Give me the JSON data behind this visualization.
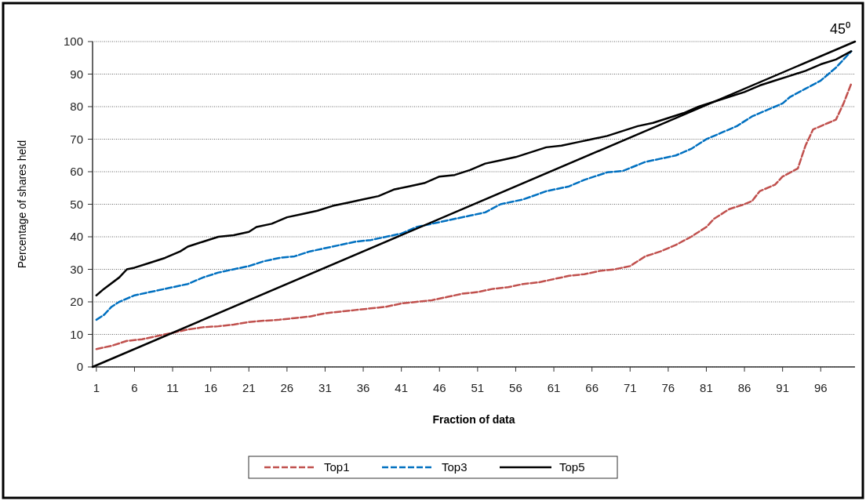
{
  "chart_data": {
    "type": "line",
    "xlabel": "Fraction of data",
    "ylabel": "Percentage of shares held",
    "xlim": [
      0.5,
      100.5
    ],
    "xticks": [
      1,
      6,
      11,
      16,
      21,
      26,
      31,
      36,
      41,
      46,
      51,
      56,
      61,
      66,
      71,
      76,
      81,
      86,
      91,
      96
    ],
    "ylim": [
      0,
      100
    ],
    "yticks": [
      0,
      10,
      20,
      30,
      40,
      50,
      60,
      70,
      80,
      90,
      100
    ],
    "grid": "y",
    "legend": "bottom",
    "annotations": [
      {
        "text": "45⁰",
        "x": 100.5,
        "y": 100
      }
    ],
    "series": [
      {
        "name": "Top1",
        "color": "#c0504d",
        "line_style": "dashed",
        "x": [
          1,
          3,
          5,
          7,
          9,
          11,
          13,
          15,
          17,
          19,
          21,
          23,
          25,
          27,
          29,
          31,
          33,
          35,
          37,
          39,
          41,
          43,
          45,
          47,
          49,
          51,
          53,
          55,
          57,
          59,
          61,
          63,
          65,
          67,
          69,
          71,
          73,
          75,
          77,
          79,
          81,
          82,
          84,
          86,
          87,
          88,
          90,
          91,
          93,
          94,
          95,
          97,
          98,
          99,
          100
        ],
        "values": [
          5.5,
          6.5,
          8,
          8.5,
          9.5,
          10.5,
          11.5,
          12.2,
          12.5,
          13,
          13.8,
          14.2,
          14.5,
          15,
          15.5,
          16.5,
          17,
          17.5,
          18,
          18.5,
          19.5,
          20,
          20.5,
          21.5,
          22.5,
          23,
          24,
          24.5,
          25.5,
          26,
          27,
          28,
          28.5,
          29.5,
          30,
          31,
          34,
          35.5,
          37.5,
          40,
          43,
          45.5,
          48.5,
          50,
          51,
          54,
          56,
          58.5,
          61,
          68,
          73,
          75,
          76,
          81,
          87
        ]
      },
      {
        "name": "Top3",
        "color": "#0070c0",
        "line_style": "dashed",
        "x": [
          1,
          2,
          3,
          4,
          6,
          8,
          10,
          12,
          13,
          15,
          17,
          19,
          21,
          23,
          25,
          27,
          29,
          31,
          33,
          35,
          37,
          39,
          41,
          43,
          45,
          47,
          50,
          52,
          54,
          57,
          60,
          63,
          65,
          68,
          70,
          73,
          75,
          77,
          79,
          81,
          83,
          85,
          87,
          89,
          91,
          92,
          94,
          96,
          98,
          100
        ],
        "values": [
          14.5,
          16,
          18.5,
          20,
          22,
          23,
          24,
          25,
          25.5,
          27.5,
          29,
          30,
          31,
          32.5,
          33.5,
          34,
          35.5,
          36.5,
          37.5,
          38.5,
          39,
          40,
          41,
          43,
          44,
          45,
          46.5,
          47.5,
          50,
          51.5,
          54,
          55.5,
          57.5,
          59.8,
          60.2,
          63,
          64,
          65,
          67,
          70,
          72,
          74,
          77,
          79,
          81,
          83,
          85.5,
          88,
          92,
          97
        ]
      },
      {
        "name": "Top5",
        "color": "#000000",
        "line_style": "solid",
        "x": [
          1,
          2,
          4,
          5,
          6,
          8,
          10,
          12,
          13,
          15,
          17,
          19,
          21,
          22,
          24,
          26,
          28,
          30,
          32,
          34,
          36,
          38,
          40,
          42,
          44,
          46,
          48,
          50,
          52,
          54,
          56,
          58,
          60,
          62,
          64,
          66,
          68,
          70,
          72,
          74,
          76,
          78,
          80,
          82,
          84,
          86,
          88,
          90,
          92,
          94,
          96,
          98,
          100
        ],
        "values": [
          22,
          24,
          27.5,
          30,
          30.5,
          32,
          33.5,
          35.5,
          37,
          38.5,
          40,
          40.5,
          41.5,
          43,
          44,
          46,
          47,
          48,
          49.5,
          50.5,
          51.5,
          52.5,
          54.5,
          55.5,
          56.5,
          58.5,
          59,
          60.5,
          62.5,
          63.5,
          64.5,
          66,
          67.5,
          68,
          69,
          70,
          71,
          72.5,
          74,
          75,
          76.5,
          78,
          80,
          81.5,
          83,
          84.5,
          86.5,
          88,
          89.5,
          91,
          93,
          94.5,
          97
        ]
      },
      {
        "color": "#000000",
        "line_style": "solid",
        "x": [
          0.5,
          100.5
        ],
        "values": [
          0,
          100
        ]
      }
    ]
  }
}
